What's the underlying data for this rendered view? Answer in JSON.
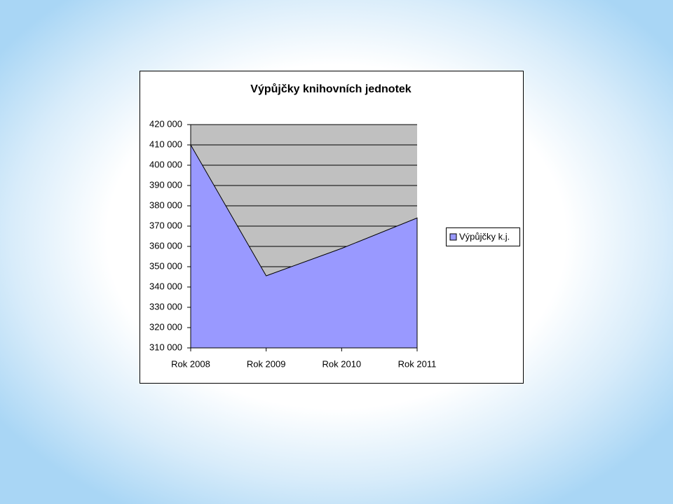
{
  "chart_data": {
    "type": "area",
    "title": "Výpůjčky knihovních jednotek",
    "categories": [
      "Rok 2008",
      "Rok 2009",
      "Rok 2010",
      "Rok 2011"
    ],
    "series": [
      {
        "name": "Výpůjčky k.j.",
        "color": "#9999ff",
        "values": [
          410000,
          345500,
          359000,
          374000
        ]
      }
    ],
    "ylim": [
      310000,
      420000
    ],
    "yticks": [
      {
        "value": 310000,
        "label": "310 000"
      },
      {
        "value": 320000,
        "label": "320 000"
      },
      {
        "value": 330000,
        "label": "330 000"
      },
      {
        "value": 340000,
        "label": "340 000"
      },
      {
        "value": 350000,
        "label": "350 000"
      },
      {
        "value": 360000,
        "label": "360 000"
      },
      {
        "value": 370000,
        "label": "370 000"
      },
      {
        "value": 380000,
        "label": "380 000"
      },
      {
        "value": 390000,
        "label": "390 000"
      },
      {
        "value": 400000,
        "label": "400 000"
      },
      {
        "value": 410000,
        "label": "410 000"
      },
      {
        "value": 420000,
        "label": "420 000"
      }
    ],
    "grid": true,
    "plot_background": "#c0c0c0",
    "legend": "right"
  }
}
